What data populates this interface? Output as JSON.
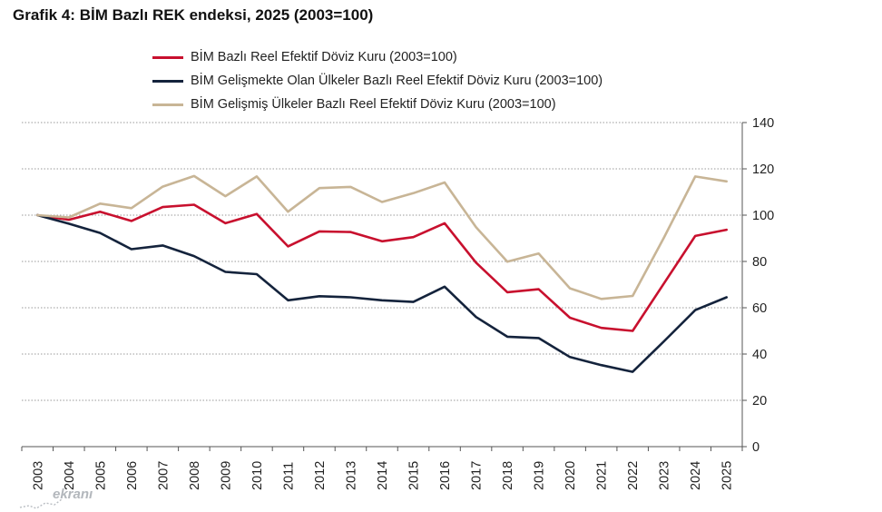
{
  "title": "Grafik 4: BİM Bazlı REK endeksi, 2025 (2003=100)",
  "watermark": "ekranı",
  "chart_data": {
    "type": "line",
    "title": "Grafik 4: BİM Bazlı REK endeksi, 2025 (2003=100)",
    "xlabel": "",
    "ylabel": "",
    "categories": [
      "2003",
      "2004",
      "2005",
      "2006",
      "2007",
      "2008",
      "2009",
      "2010",
      "2011",
      "2012",
      "2013",
      "2014",
      "2015",
      "2016",
      "2017",
      "2018",
      "2019",
      "2020",
      "2021",
      "2022",
      "2023",
      "2024",
      "2025"
    ],
    "ylim": [
      0,
      140
    ],
    "yticks": [
      0,
      20,
      40,
      60,
      80,
      100,
      120,
      140
    ],
    "ytick_labels": [
      "0",
      "20",
      "40",
      "60",
      "80",
      "100",
      "120",
      "140"
    ],
    "y_axis_side": "right",
    "grid": "horizontal dotted",
    "legend_position": "top",
    "series": [
      {
        "name": "BİM Bazlı Reel Efektif Döviz Kuru (2003=100)",
        "color": "#c8102e",
        "values": [
          100,
          98,
          101.5,
          97.5,
          103.5,
          104.5,
          96.5,
          100.5,
          86.5,
          93,
          92.7,
          88.7,
          90.5,
          96.5,
          79.5,
          66.7,
          68,
          55.7,
          51.3,
          50,
          70.5,
          91,
          93.7
        ]
      },
      {
        "name": "BİM Gelişmekte Olan Ülkeler Bazlı Reel Efektif Döviz Kuru (2003=100)",
        "color": "#14233c",
        "values": [
          100,
          96.3,
          92.3,
          85.3,
          86.9,
          82.3,
          75.5,
          74.5,
          63.2,
          65,
          64.5,
          63.2,
          62.5,
          69.1,
          56,
          47.5,
          46.9,
          38.7,
          35.2,
          32.3,
          45.5,
          59,
          64.5
        ]
      },
      {
        "name": "BİM Gelişmiş Ülkeler Bazlı Reel Efektif Döviz Kuru (2003=100)",
        "color": "#c8b596",
        "values": [
          100,
          99,
          105,
          103,
          112.3,
          116.9,
          108.2,
          116.7,
          101.5,
          111.7,
          112.2,
          105.7,
          109.5,
          114.1,
          94.8,
          79.9,
          83.4,
          68.4,
          63.8,
          65.1,
          90.3,
          116.7,
          114.6
        ]
      }
    ]
  }
}
